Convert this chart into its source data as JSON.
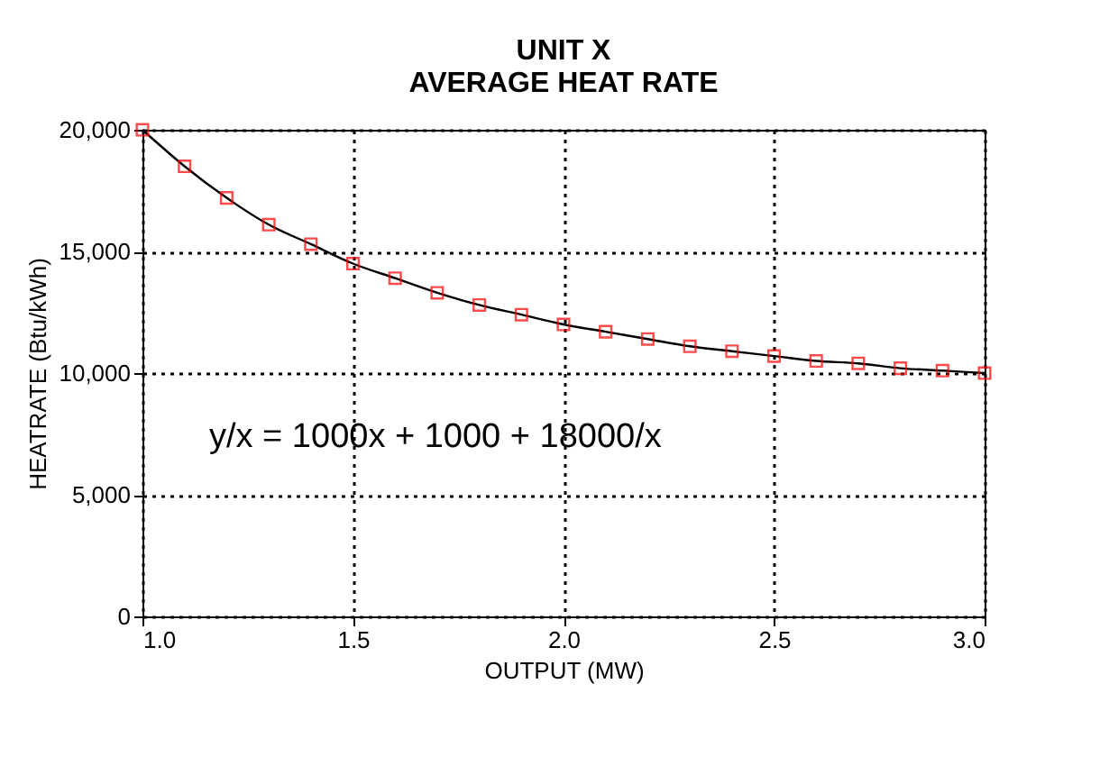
{
  "chart_data": {
    "type": "line",
    "title": [
      "UNIT X",
      "AVERAGE HEAT RATE"
    ],
    "xlabel": "OUTPUT (MW)",
    "ylabel": "HEATRATE (Btu/kWh)",
    "x": [
      1.0,
      1.1,
      1.2,
      1.3,
      1.4,
      1.5,
      1.6,
      1.7,
      1.8,
      1.9,
      2.0,
      2.1,
      2.2,
      2.3,
      2.4,
      2.5,
      2.6,
      2.7,
      2.8,
      2.9,
      3.0
    ],
    "series": [
      {
        "color": "#000000",
        "marker": "none",
        "line_style": "solid",
        "values": [
          20000,
          18500,
          17200,
          16100,
          15300,
          14500,
          13900,
          13300,
          12800,
          12400,
          12000,
          11700,
          11400,
          11100,
          10900,
          10700,
          10500,
          10400,
          10200,
          10100,
          10000
        ]
      },
      {
        "type": "scatter",
        "color": "#ff0000",
        "marker": "square",
        "values": [
          20000,
          18500,
          17200,
          16100,
          15300,
          14500,
          13900,
          13300,
          12800,
          12400,
          12000,
          11700,
          11400,
          11100,
          10900,
          10700,
          10500,
          10400,
          10200,
          10100,
          10000
        ]
      }
    ],
    "xlim": [
      1.0,
      3.0
    ],
    "xticks": [
      {
        "value": 1.0,
        "label": "1.0"
      },
      {
        "value": 1.5,
        "label": "1.5"
      },
      {
        "value": 2.0,
        "label": "2.0"
      },
      {
        "value": 2.5,
        "label": "2.5"
      },
      {
        "value": 3.0,
        "label": "3.0"
      }
    ],
    "ylim": [
      0,
      20000
    ],
    "yticks": [
      0,
      {
        "value": 5000,
        "label": "5,000"
      },
      {
        "value": 10000,
        "label": "10,000"
      },
      {
        "value": 15000,
        "label": "15,000"
      },
      {
        "value": 20000,
        "label": "20,000"
      }
    ],
    "grid": true,
    "annotations": [
      "y/x = 1000x + 1000 + 18000/x"
    ]
  }
}
